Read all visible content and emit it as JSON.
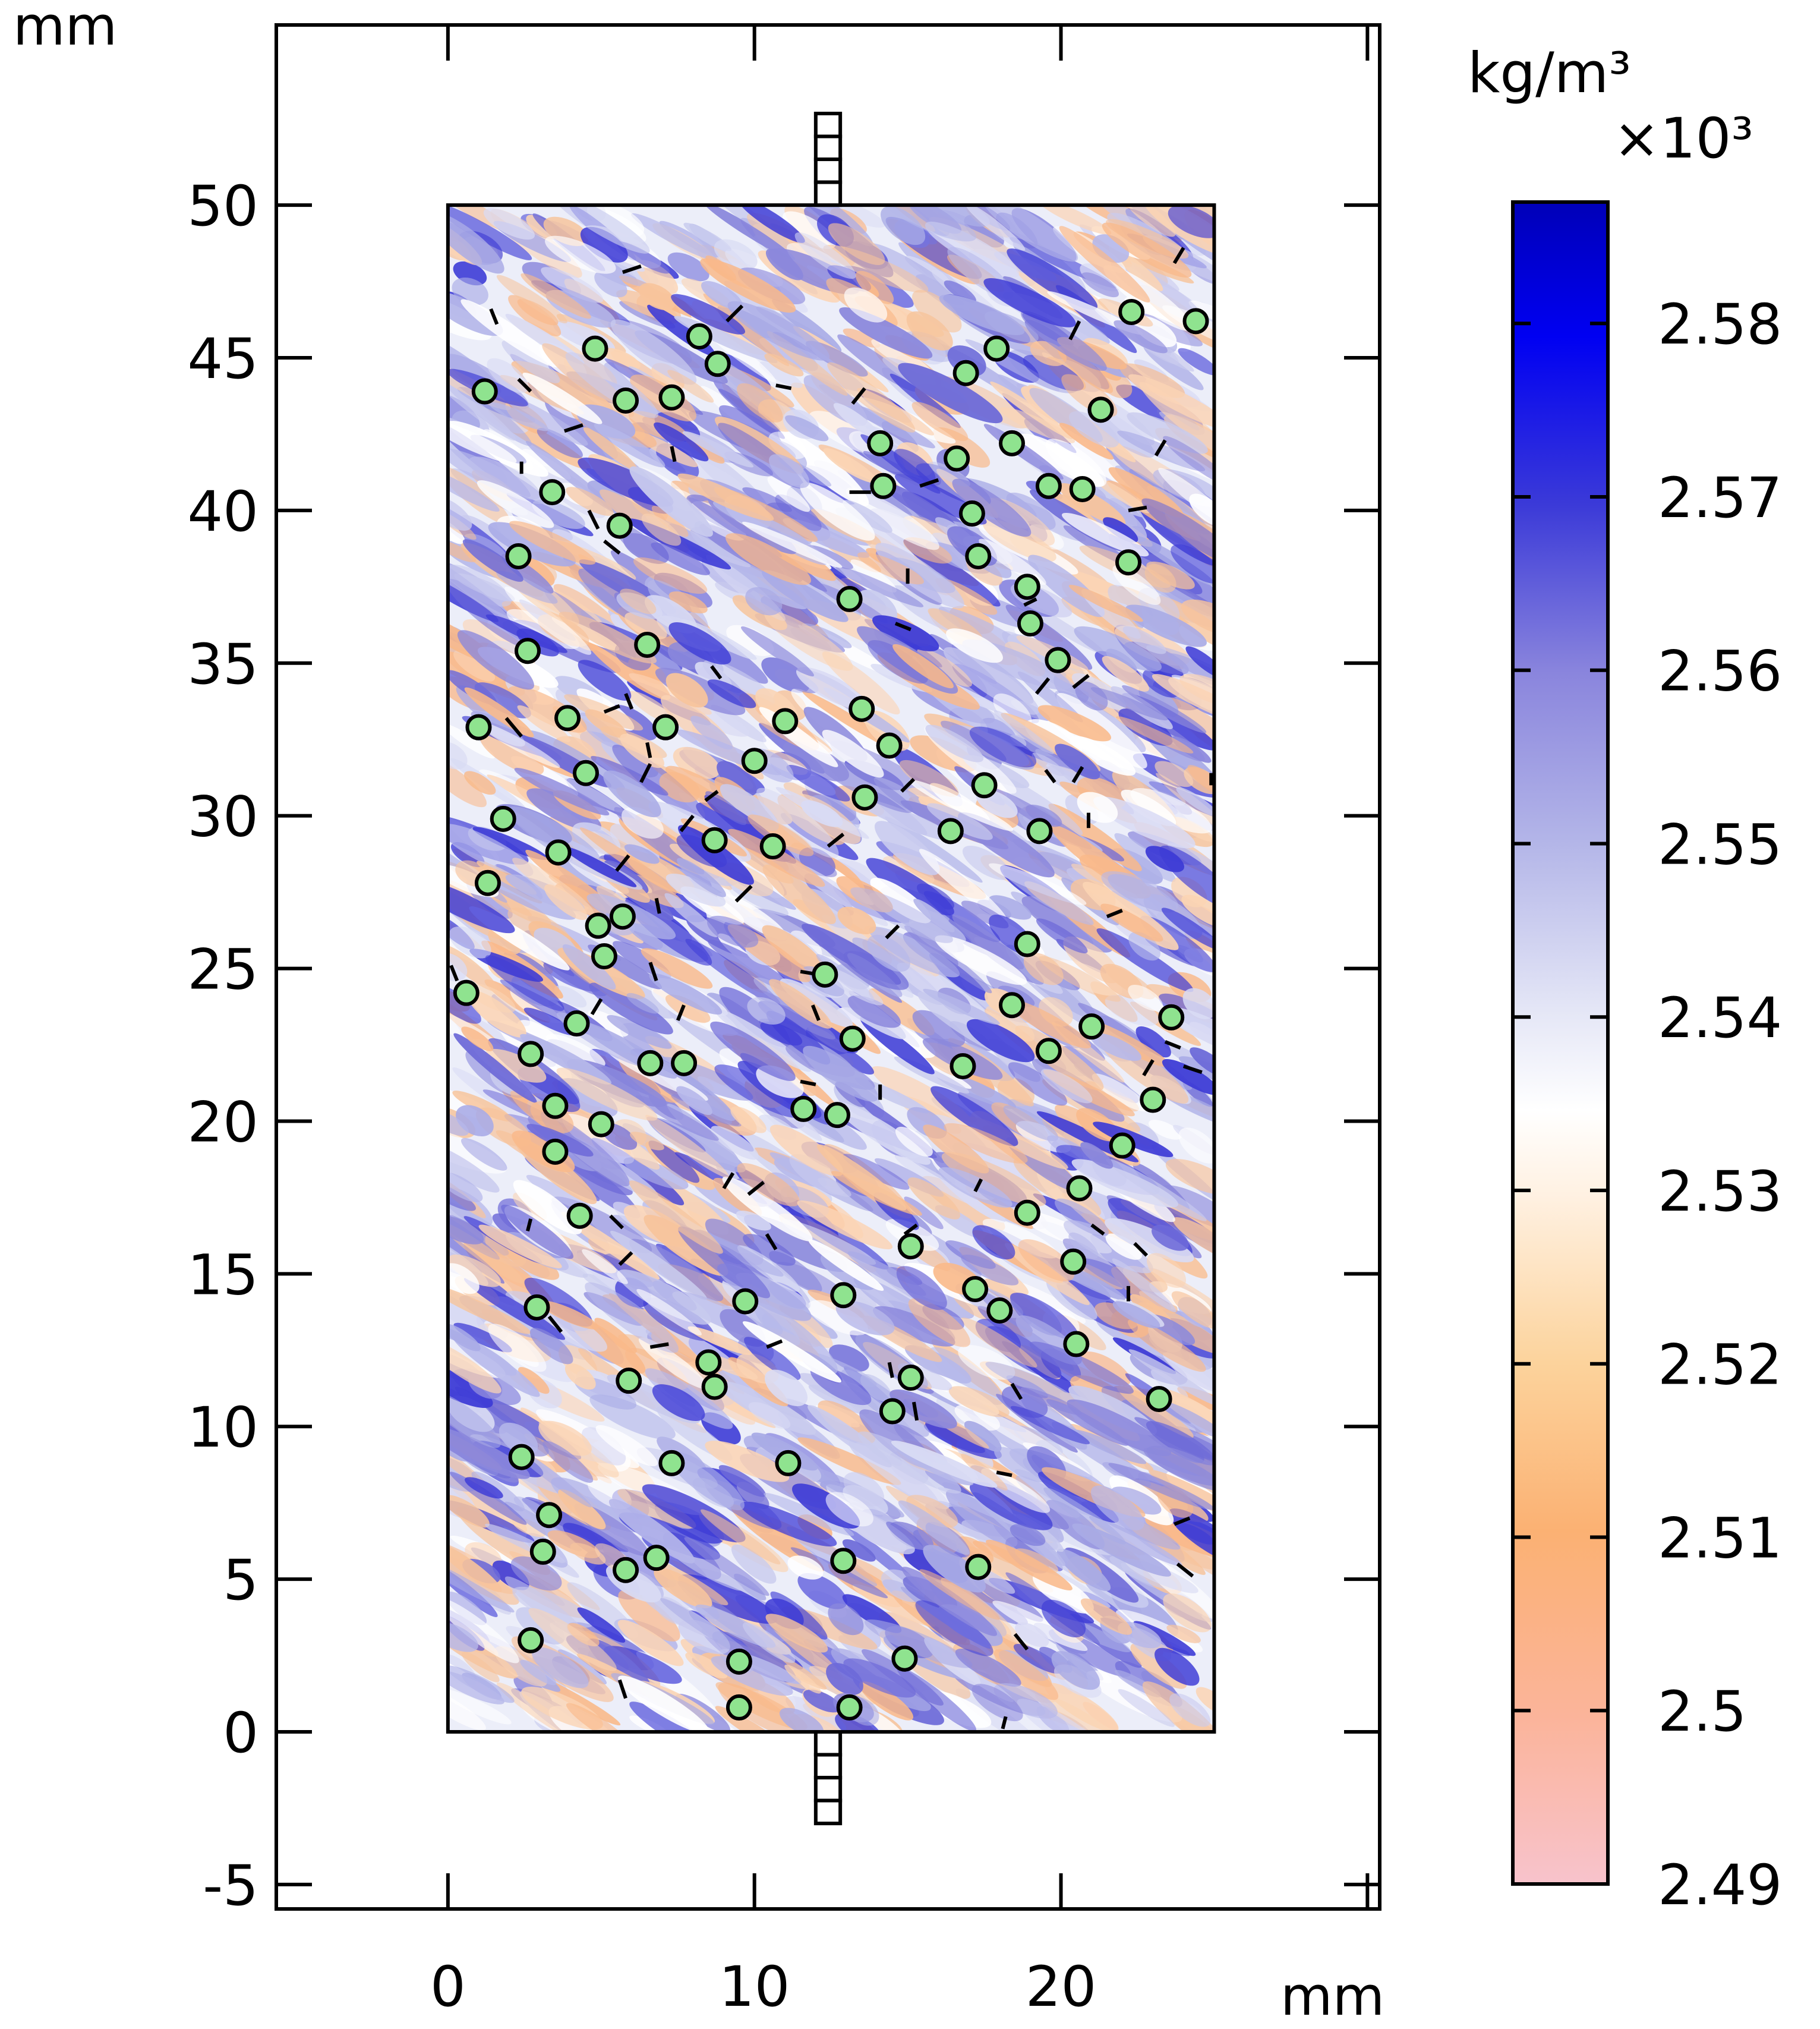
{
  "chart_data": {
    "type": "heatmap",
    "title": "",
    "x_unit_label": "mm",
    "y_unit_label": "mm",
    "xlim": [
      -5.6,
      30.4
    ],
    "ylim": [
      -5.8,
      55.9
    ],
    "x_ticks": [
      0,
      10,
      20
    ],
    "x_tick_labels": [
      "0",
      "10",
      "20"
    ],
    "y_ticks": [
      -5,
      0,
      5,
      10,
      15,
      20,
      25,
      30,
      35,
      40,
      45,
      50
    ],
    "y_tick_labels": [
      "-5",
      "0",
      "5",
      "10",
      "15",
      "20",
      "25",
      "30",
      "35",
      "40",
      "45",
      "50"
    ],
    "specimen_extent": {
      "x": [
        0,
        25
      ],
      "y": [
        0,
        50
      ]
    },
    "loading_platens": [
      {
        "x": [
          12.0,
          12.8
        ],
        "y": [
          50,
          53
        ]
      },
      {
        "x": [
          12.0,
          12.8
        ],
        "y": [
          -3,
          0
        ]
      }
    ],
    "colorbar": {
      "unit_label": "kg/m³",
      "multiplier_label": "×10³",
      "min": 2.49,
      "max": 2.587,
      "ticks": [
        2.49,
        2.5,
        2.51,
        2.52,
        2.53,
        2.54,
        2.55,
        2.56,
        2.57,
        2.58
      ],
      "tick_labels": [
        "2.49",
        "2.5",
        "2.51",
        "2.52",
        "2.53",
        "2.54",
        "2.55",
        "2.56",
        "2.57",
        "2.58"
      ],
      "colors": {
        "low": "#f9c0c8",
        "mid_low": "#fbb070",
        "mid": "#ffffff",
        "mid_high": "#8888dd",
        "high": "#0000c8"
      }
    },
    "aggregates": {
      "marker_color": "#8fe38f",
      "points": [
        [
          1.2,
          43.9
        ],
        [
          4.8,
          45.3
        ],
        [
          5.8,
          43.6
        ],
        [
          8.2,
          45.7
        ],
        [
          8.8,
          44.8
        ],
        [
          7.3,
          43.7
        ],
        [
          16.9,
          44.5
        ],
        [
          17.9,
          45.3
        ],
        [
          22.3,
          46.5
        ],
        [
          24.4,
          46.2
        ],
        [
          21.3,
          43.3
        ],
        [
          14.1,
          42.2
        ],
        [
          16.6,
          41.7
        ],
        [
          18.4,
          42.2
        ],
        [
          3.4,
          40.6
        ],
        [
          5.6,
          39.5
        ],
        [
          14.2,
          40.8
        ],
        [
          17.1,
          39.9
        ],
        [
          19.6,
          40.8
        ],
        [
          20.7,
          40.7
        ],
        [
          2.3,
          38.5
        ],
        [
          17.3,
          38.5
        ],
        [
          22.2,
          38.3
        ],
        [
          13.1,
          37.1
        ],
        [
          18.9,
          37.5
        ],
        [
          19.0,
          36.3
        ],
        [
          2.6,
          35.4
        ],
        [
          6.5,
          35.6
        ],
        [
          19.9,
          35.1
        ],
        [
          1.0,
          32.9
        ],
        [
          3.9,
          33.2
        ],
        [
          7.1,
          32.9
        ],
        [
          11.0,
          33.1
        ],
        [
          13.5,
          33.5
        ],
        [
          4.5,
          31.4
        ],
        [
          10.0,
          31.8
        ],
        [
          14.4,
          32.3
        ],
        [
          13.6,
          30.6
        ],
        [
          17.5,
          31.0
        ],
        [
          1.8,
          29.9
        ],
        [
          3.6,
          28.8
        ],
        [
          8.7,
          29.2
        ],
        [
          10.6,
          29.0
        ],
        [
          16.4,
          29.5
        ],
        [
          19.3,
          29.5
        ],
        [
          1.3,
          27.8
        ],
        [
          4.9,
          26.4
        ],
        [
          5.7,
          26.7
        ],
        [
          5.1,
          25.4
        ],
        [
          18.9,
          25.8
        ],
        [
          0.6,
          24.2
        ],
        [
          12.3,
          24.8
        ],
        [
          4.2,
          23.2
        ],
        [
          18.4,
          23.8
        ],
        [
          21.0,
          23.1
        ],
        [
          23.6,
          23.4
        ],
        [
          13.2,
          22.7
        ],
        [
          2.7,
          22.2
        ],
        [
          6.6,
          21.9
        ],
        [
          7.7,
          21.9
        ],
        [
          16.8,
          21.8
        ],
        [
          19.6,
          22.3
        ],
        [
          3.5,
          20.5
        ],
        [
          5.0,
          19.9
        ],
        [
          11.6,
          20.4
        ],
        [
          12.7,
          20.2
        ],
        [
          23.0,
          20.7
        ],
        [
          3.5,
          19.0
        ],
        [
          22.0,
          19.2
        ],
        [
          4.3,
          16.9
        ],
        [
          18.9,
          17.0
        ],
        [
          20.6,
          17.8
        ],
        [
          15.1,
          15.9
        ],
        [
          20.4,
          15.4
        ],
        [
          2.9,
          13.9
        ],
        [
          9.7,
          14.1
        ],
        [
          12.9,
          14.3
        ],
        [
          17.2,
          14.5
        ],
        [
          18.0,
          13.8
        ],
        [
          8.5,
          12.1
        ],
        [
          20.5,
          12.7
        ],
        [
          5.9,
          11.5
        ],
        [
          8.7,
          11.3
        ],
        [
          15.1,
          11.6
        ],
        [
          14.5,
          10.5
        ],
        [
          23.2,
          10.9
        ],
        [
          2.4,
          9.0
        ],
        [
          7.3,
          8.8
        ],
        [
          11.1,
          8.8
        ],
        [
          3.3,
          7.1
        ],
        [
          3.1,
          5.9
        ],
        [
          5.8,
          5.3
        ],
        [
          6.8,
          5.7
        ],
        [
          12.9,
          5.6
        ],
        [
          17.3,
          5.4
        ],
        [
          2.7,
          3.0
        ],
        [
          9.5,
          2.3
        ],
        [
          14.9,
          2.4
        ],
        [
          9.5,
          0.8
        ],
        [
          13.1,
          0.8
        ]
      ]
    },
    "cracks": [
      [
        [
          5.7,
          47.8
        ],
        [
          6.3,
          48.0
        ]
      ],
      [
        [
          1.4,
          46.6
        ],
        [
          1.6,
          46.1
        ]
      ],
      [
        [
          9.1,
          46.2
        ],
        [
          9.6,
          46.7
        ]
      ],
      [
        [
          2.3,
          44.3
        ],
        [
          2.7,
          43.9
        ]
      ],
      [
        [
          10.7,
          44.1
        ],
        [
          11.2,
          44.0
        ]
      ],
      [
        [
          3.8,
          42.6
        ],
        [
          4.4,
          42.8
        ]
      ],
      [
        [
          13.2,
          43.5
        ],
        [
          13.6,
          44.0
        ]
      ],
      [
        [
          7.3,
          42.1
        ],
        [
          7.4,
          41.6
        ]
      ],
      [
        [
          20.3,
          45.6
        ],
        [
          20.6,
          46.2
        ]
      ],
      [
        [
          23.7,
          48.1
        ],
        [
          24.0,
          48.6
        ]
      ],
      [
        [
          23.1,
          41.8
        ],
        [
          23.4,
          42.3
        ]
      ],
      [
        [
          15.4,
          40.8
        ],
        [
          16.0,
          41.0
        ]
      ],
      [
        [
          13.1,
          40.6
        ],
        [
          13.8,
          40.6
        ]
      ],
      [
        [
          2.4,
          41.6
        ],
        [
          2.4,
          41.2
        ]
      ],
      [
        [
          4.6,
          40.0
        ],
        [
          4.9,
          39.4
        ]
      ],
      [
        [
          5.1,
          39.0
        ],
        [
          5.6,
          38.6
        ]
      ],
      [
        [
          22.2,
          40.0
        ],
        [
          22.8,
          40.1
        ]
      ],
      [
        [
          15.0,
          37.6
        ],
        [
          15.0,
          38.1
        ]
      ],
      [
        [
          14.6,
          36.3
        ],
        [
          15.1,
          36.1
        ]
      ],
      [
        [
          8.6,
          34.9
        ],
        [
          8.9,
          34.5
        ]
      ],
      [
        [
          18.8,
          36.9
        ],
        [
          19.2,
          37.1
        ]
      ],
      [
        [
          20.4,
          34.2
        ],
        [
          20.9,
          34.6
        ]
      ],
      [
        [
          19.2,
          34.0
        ],
        [
          19.6,
          34.5
        ]
      ],
      [
        [
          5.1,
          33.4
        ],
        [
          5.6,
          33.6
        ]
      ],
      [
        [
          1.9,
          33.2
        ],
        [
          2.4,
          32.6
        ]
      ],
      [
        [
          5.8,
          34.0
        ],
        [
          6.0,
          33.5
        ]
      ],
      [
        [
          6.5,
          32.4
        ],
        [
          6.6,
          31.9
        ]
      ],
      [
        [
          6.3,
          31.1
        ],
        [
          6.6,
          31.7
        ]
      ],
      [
        [
          8.4,
          30.5
        ],
        [
          8.8,
          30.8
        ]
      ],
      [
        [
          14.8,
          30.8
        ],
        [
          15.2,
          31.2
        ]
      ],
      [
        [
          19.5,
          31.5
        ],
        [
          19.8,
          31.1
        ]
      ],
      [
        [
          20.4,
          31.1
        ],
        [
          20.7,
          31.6
        ]
      ],
      [
        [
          24.9,
          31.0
        ],
        [
          24.9,
          31.4
        ]
      ],
      [
        [
          20.9,
          29.6
        ],
        [
          20.9,
          30.1
        ]
      ],
      [
        [
          7.6,
          29.5
        ],
        [
          8.0,
          30.0
        ]
      ],
      [
        [
          12.4,
          29.0
        ],
        [
          12.9,
          29.4
        ]
      ],
      [
        [
          9.4,
          27.2
        ],
        [
          9.9,
          27.7
        ]
      ],
      [
        [
          5.5,
          28.2
        ],
        [
          5.9,
          28.7
        ]
      ],
      [
        [
          6.8,
          27.3
        ],
        [
          6.9,
          26.8
        ]
      ],
      [
        [
          14.3,
          26.0
        ],
        [
          14.7,
          26.4
        ]
      ],
      [
        [
          21.5,
          26.7
        ],
        [
          22.0,
          26.9
        ]
      ],
      [
        [
          0.1,
          25.1
        ],
        [
          0.3,
          24.6
        ]
      ],
      [
        [
          6.6,
          25.2
        ],
        [
          6.8,
          24.6
        ]
      ],
      [
        [
          11.5,
          24.9
        ],
        [
          12.1,
          24.8
        ]
      ],
      [
        [
          11.9,
          23.8
        ],
        [
          12.1,
          23.3
        ]
      ],
      [
        [
          4.7,
          23.5
        ],
        [
          5.0,
          24.0
        ]
      ],
      [
        [
          7.5,
          23.3
        ],
        [
          7.7,
          23.8
        ]
      ],
      [
        [
          23.4,
          22.6
        ],
        [
          23.9,
          22.4
        ]
      ],
      [
        [
          24.0,
          21.8
        ],
        [
          24.6,
          21.6
        ]
      ],
      [
        [
          11.5,
          21.3
        ],
        [
          12.0,
          21.2
        ]
      ],
      [
        [
          14.1,
          20.7
        ],
        [
          14.1,
          21.2
        ]
      ],
      [
        [
          22.7,
          21.5
        ],
        [
          23.0,
          22.0
        ]
      ],
      [
        [
          9.0,
          17.8
        ],
        [
          9.3,
          18.3
        ]
      ],
      [
        [
          9.8,
          17.6
        ],
        [
          10.3,
          18.0
        ]
      ],
      [
        [
          17.2,
          17.7
        ],
        [
          17.4,
          18.1
        ]
      ],
      [
        [
          2.6,
          16.4
        ],
        [
          2.7,
          16.8
        ]
      ],
      [
        [
          5.3,
          16.9
        ],
        [
          5.7,
          16.5
        ]
      ],
      [
        [
          5.6,
          15.3
        ],
        [
          6.0,
          15.7
        ]
      ],
      [
        [
          10.4,
          16.3
        ],
        [
          10.7,
          15.8
        ]
      ],
      [
        [
          14.9,
          16.3
        ],
        [
          15.3,
          16.6
        ]
      ],
      [
        [
          21.0,
          16.6
        ],
        [
          21.4,
          16.3
        ]
      ],
      [
        [
          22.4,
          16.0
        ],
        [
          22.8,
          15.6
        ]
      ],
      [
        [
          22.2,
          14.6
        ],
        [
          22.2,
          14.1
        ]
      ],
      [
        [
          3.3,
          13.6
        ],
        [
          3.7,
          13.1
        ]
      ],
      [
        [
          6.6,
          12.6
        ],
        [
          7.2,
          12.7
        ]
      ],
      [
        [
          10.4,
          12.6
        ],
        [
          10.9,
          12.8
        ]
      ],
      [
        [
          14.5,
          11.6
        ],
        [
          14.4,
          12.1
        ]
      ],
      [
        [
          15.2,
          10.8
        ],
        [
          15.3,
          10.2
        ]
      ],
      [
        [
          18.4,
          11.4
        ],
        [
          18.7,
          10.9
        ]
      ],
      [
        [
          17.9,
          8.5
        ],
        [
          18.4,
          8.4
        ]
      ],
      [
        [
          23.7,
          6.8
        ],
        [
          24.2,
          7.0
        ]
      ],
      [
        [
          23.8,
          5.5
        ],
        [
          24.3,
          5.1
        ]
      ],
      [
        [
          18.5,
          3.2
        ],
        [
          18.9,
          2.7
        ]
      ],
      [
        [
          5.6,
          1.7
        ],
        [
          5.8,
          1.1
        ]
      ],
      [
        [
          18.1,
          0.1
        ],
        [
          18.2,
          0.5
        ]
      ]
    ]
  }
}
